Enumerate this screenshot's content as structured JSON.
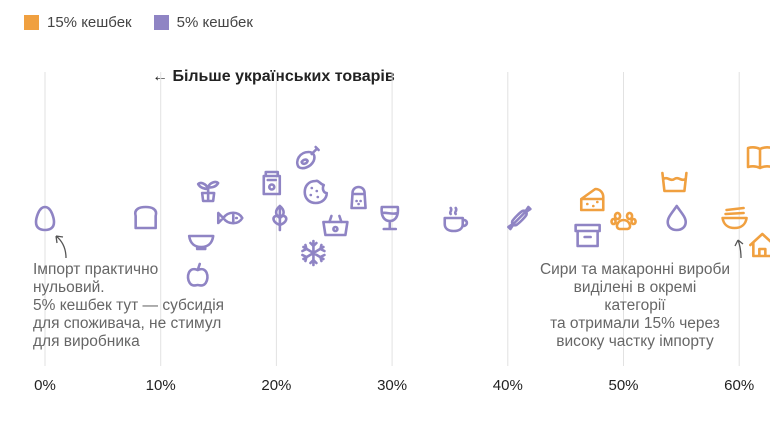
{
  "legend": [
    {
      "label": "15% кешбек",
      "color": "#f0a040"
    },
    {
      "label": "5% кешбек",
      "color": "#8f84c4"
    }
  ],
  "direction_label": "← Більше українських товарів",
  "annotations": {
    "left": [
      "Імпорт практично",
      "нульовий.",
      "5% кешбек тут — субсидія",
      "для споживача, не стимул",
      "для виробника"
    ],
    "right": [
      "Сири та макаронні вироби",
      "виділені в окремі",
      "категорії",
      "та отримали 15% через",
      "високу частку імпорту"
    ]
  },
  "chart_data": {
    "type": "scatter",
    "xlim": [
      0,
      63
    ],
    "x_ticks": [
      "0%",
      "10%",
      "20%",
      "30%",
      "40%",
      "50%",
      "60%"
    ],
    "x_tick_values": [
      0,
      10,
      20,
      30,
      40,
      50,
      60
    ],
    "grid": true,
    "legend_position": "top-left",
    "points": [
      {
        "icon": "egg",
        "x": 0.0,
        "cashback": "5%"
      },
      {
        "icon": "bread",
        "x": 8.7,
        "cashback": "5%"
      },
      {
        "icon": "plant",
        "x": 14.1,
        "cashback": "5%"
      },
      {
        "icon": "bowl",
        "x": 13.5,
        "cashback": "5%"
      },
      {
        "icon": "apple",
        "x": 13.2,
        "cashback": "5%"
      },
      {
        "icon": "fish",
        "x": 16.1,
        "cashback": "5%"
      },
      {
        "icon": "jar",
        "x": 19.6,
        "cashback": "5%"
      },
      {
        "icon": "wheat",
        "x": 20.3,
        "cashback": "5%"
      },
      {
        "icon": "meat",
        "x": 22.7,
        "cashback": "5%"
      },
      {
        "icon": "cookie",
        "x": 23.4,
        "cashback": "5%"
      },
      {
        "icon": "basket",
        "x": 25.1,
        "cashback": "5%"
      },
      {
        "icon": "snowflake",
        "x": 23.2,
        "cashback": "5%"
      },
      {
        "icon": "salt-shaker",
        "x": 27.1,
        "cashback": "5%"
      },
      {
        "icon": "wine-glass",
        "x": 29.8,
        "cashback": "5%"
      },
      {
        "icon": "coffee-cup",
        "x": 35.5,
        "cashback": "5%"
      },
      {
        "icon": "candy",
        "x": 41.0,
        "cashback": "5%"
      },
      {
        "icon": "cheese",
        "x": 47.3,
        "cashback": "15%"
      },
      {
        "icon": "box",
        "x": 46.9,
        "cashback": "5%"
      },
      {
        "icon": "paw",
        "x": 50.0,
        "cashback": "15%"
      },
      {
        "icon": "washing-basin",
        "x": 54.4,
        "cashback": "15%"
      },
      {
        "icon": "drop",
        "x": 54.6,
        "cashback": "5%"
      },
      {
        "icon": "noodle-bowl",
        "x": 59.6,
        "cashback": "15%"
      },
      {
        "icon": "book",
        "x": 61.8,
        "cashback": "15%"
      },
      {
        "icon": "house",
        "x": 62.0,
        "cashback": "15%"
      }
    ]
  }
}
